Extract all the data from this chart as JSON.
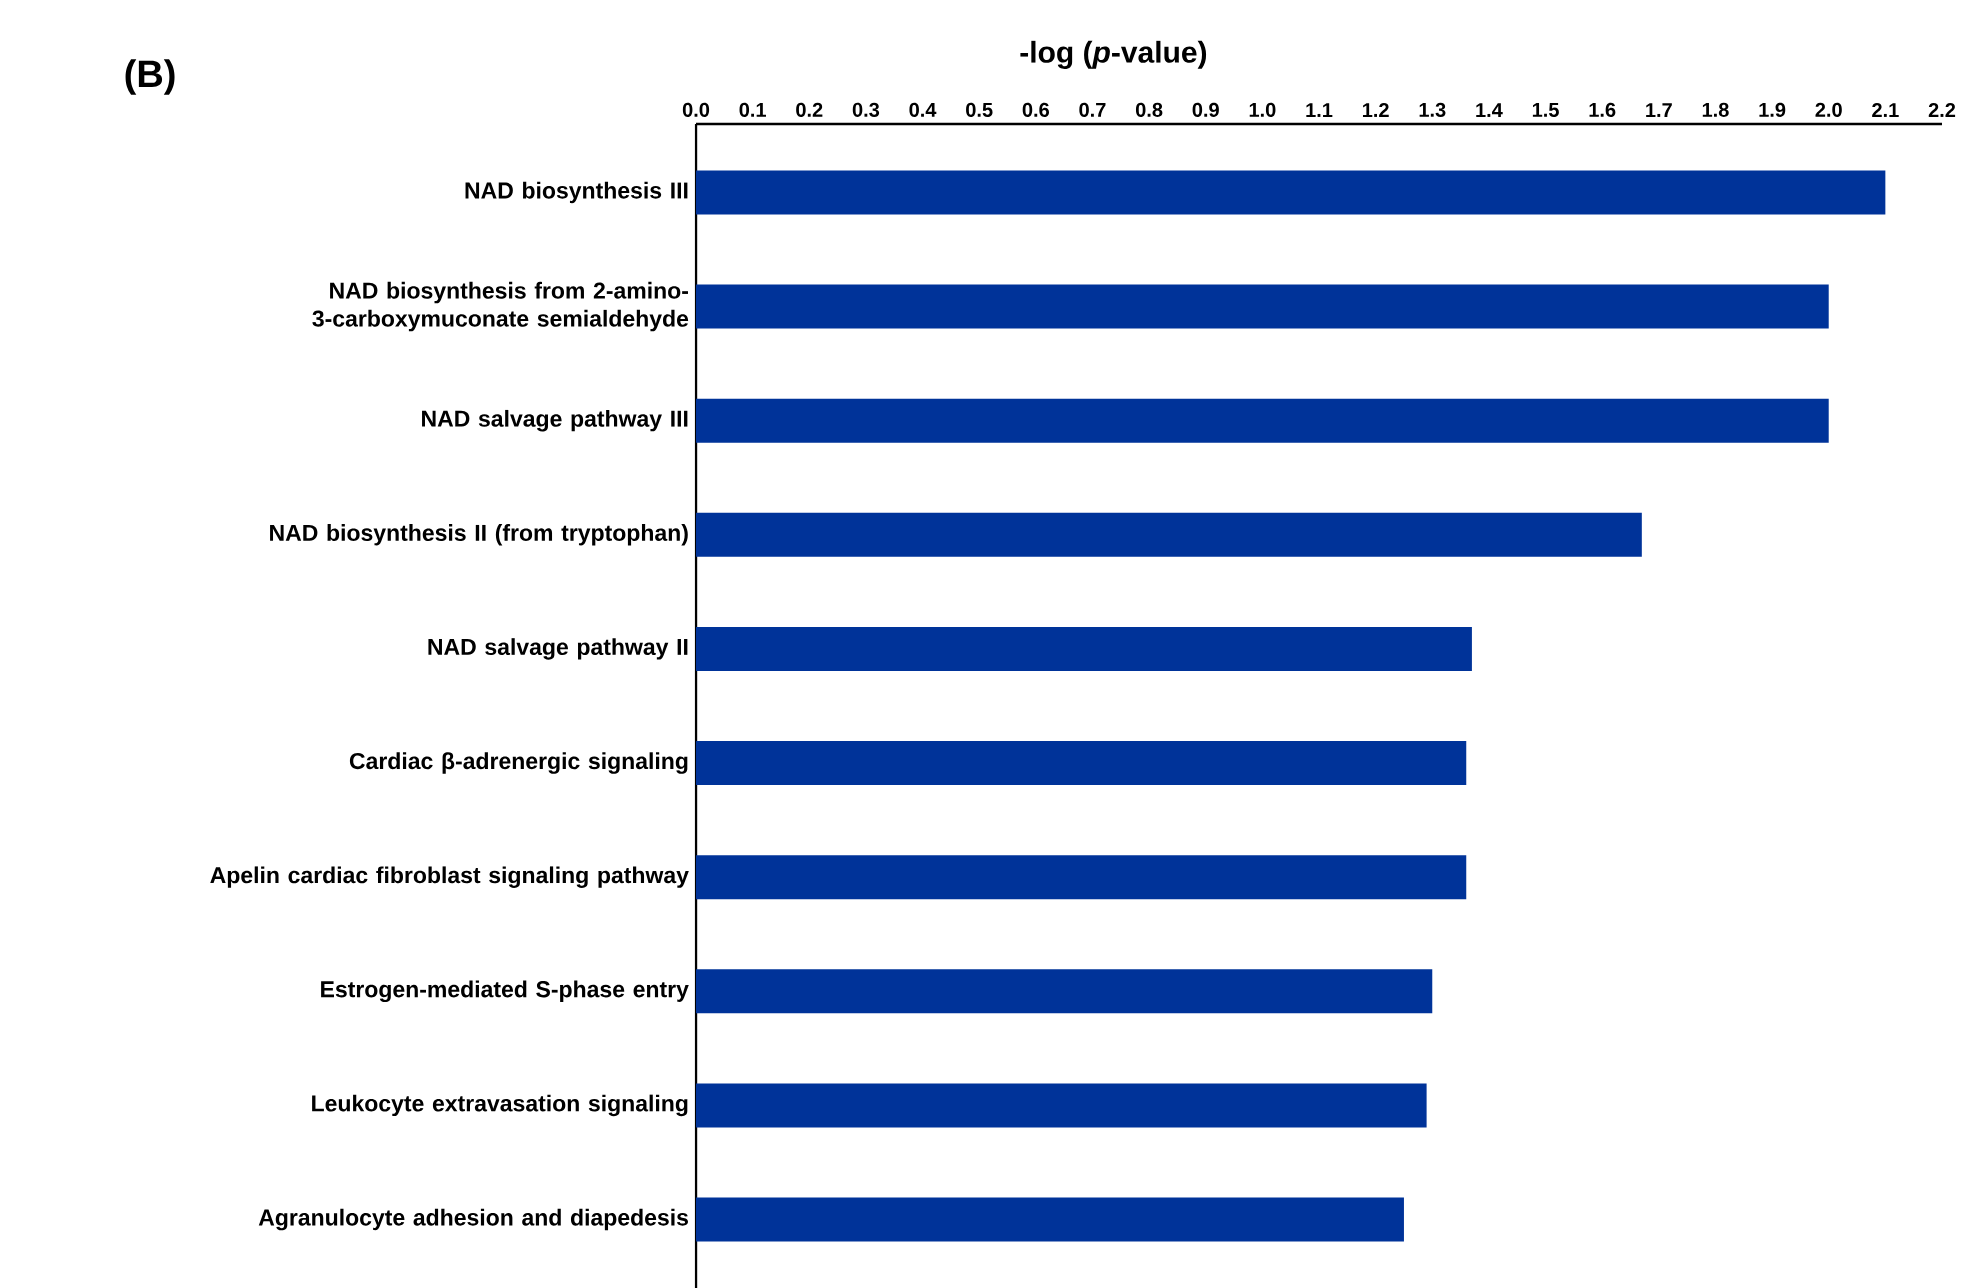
{
  "chart_data": {
    "type": "bar",
    "orientation": "horizontal",
    "title": "(B)",
    "xlabel": "-log (*p*-value)",
    "categories": [
      "NAD biosynthesis III",
      "NAD biosynthesis from 2-amino-3-carboxymuconate semialdehyde",
      "NAD salvage pathway III",
      "NAD biosynthesis II (from tryptophan)",
      "NAD salvage pathway II",
      "Cardiac β-adrenergic signaling",
      "Apelin cardiac fibroblast signaling pathway",
      "Estrogen-mediated S-phase entry",
      "Leukocyte extravasation signaling",
      "Agranulocyte adhesion and diapedesis"
    ],
    "values": [
      2.1,
      2.0,
      2.0,
      1.67,
      1.37,
      1.36,
      1.36,
      1.3,
      1.29,
      1.25
    ],
    "color": "#003399",
    "xlim": [
      0,
      2.2
    ],
    "xticks": [
      {
        "value": 0,
        "label": "0.0"
      },
      0.1,
      0.2,
      0.3,
      0.4,
      0.5,
      0.6,
      0.7,
      0.8,
      0.9,
      {
        "value": 1,
        "label": "1.0"
      },
      1.1,
      1.2,
      1.3,
      1.4,
      1.5,
      1.6,
      1.7,
      1.8,
      1.9,
      {
        "value": 2,
        "label": "2.0"
      },
      2.1,
      2.2
    ]
  }
}
